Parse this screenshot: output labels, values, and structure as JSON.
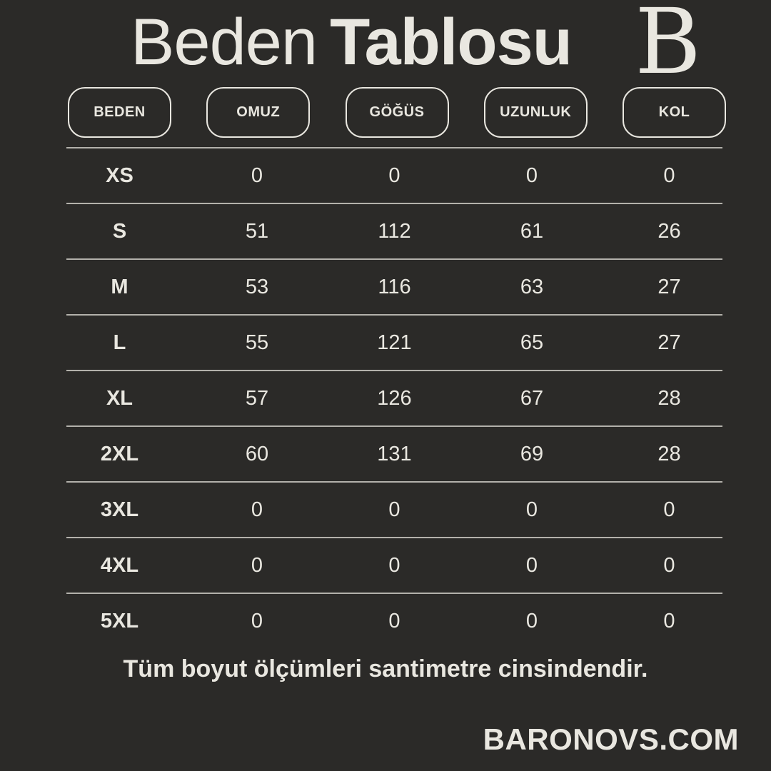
{
  "page": {
    "background_color": "#2b2a28",
    "text_color": "#e9e7e0",
    "line_color": "#b3b1ab"
  },
  "header": {
    "title_regular": "Beden",
    "title_bold": "Tablosu",
    "logo_letter": "B"
  },
  "chart_data": {
    "type": "table",
    "title": "Beden Tablosu",
    "columns": [
      "BEDEN",
      "OMUZ",
      "GÖĞÜS",
      "UZUNLUK",
      "KOL"
    ],
    "rows": [
      {
        "size": "XS",
        "values": [
          "0",
          "0",
          "0",
          "0"
        ]
      },
      {
        "size": "S",
        "values": [
          "51",
          "112",
          "61",
          "26"
        ]
      },
      {
        "size": "M",
        "values": [
          "53",
          "116",
          "63",
          "27"
        ]
      },
      {
        "size": "L",
        "values": [
          "55",
          "121",
          "65",
          "27"
        ]
      },
      {
        "size": "XL",
        "values": [
          "57",
          "126",
          "67",
          "28"
        ]
      },
      {
        "size": "2XL",
        "values": [
          "60",
          "131",
          "69",
          "28"
        ]
      },
      {
        "size": "3XL",
        "values": [
          "0",
          "0",
          "0",
          "0"
        ]
      },
      {
        "size": "4XL",
        "values": [
          "0",
          "0",
          "0",
          "0"
        ]
      },
      {
        "size": "5XL",
        "values": [
          "0",
          "0",
          "0",
          "0"
        ]
      }
    ],
    "unit_note": "Tüm boyut ölçümleri santimetre cinsindendir."
  },
  "footer": {
    "note": "Tüm boyut ölçümleri santimetre cinsindendir.",
    "website": "BARONOVS.COM"
  }
}
